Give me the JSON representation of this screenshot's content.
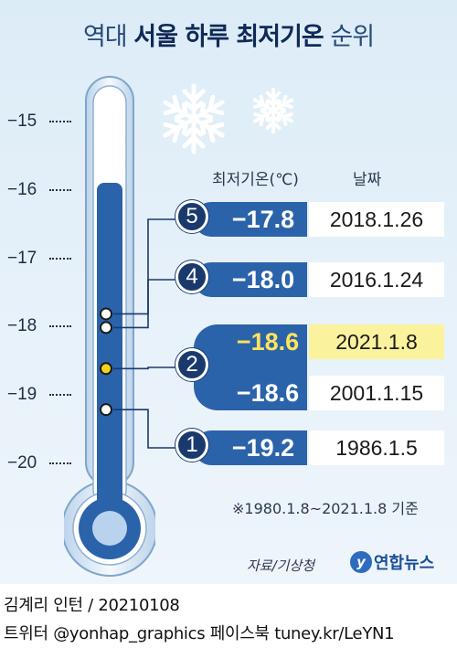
{
  "title": {
    "light": "역대",
    "bold": "서울 하루 최저기온",
    "suffix": "순위"
  },
  "headers": {
    "temp": "최저기온(℃)",
    "date": "날짜"
  },
  "note": "※1980.1.8~2021.1.8 기준",
  "source": "자료/기상청",
  "brand": {
    "mark": "y",
    "name": "연합뉴스"
  },
  "credit": {
    "line1": "김계리 인턴 / 20210108",
    "line2": "트위터 @yonhap_graphics  페이스북 tuney.kr/LeYN1"
  },
  "colors": {
    "navy": "#1a3a6e",
    "blue": "#2b63ab",
    "highlight_text": "#ffe45a",
    "highlight_bg": "#fbf29e",
    "marker_highlight": "#f3d21b"
  },
  "icons": [
    "snowflake-icon",
    "snowflake-icon",
    "thermometer-icon"
  ],
  "chart_data": {
    "type": "table",
    "axis": {
      "ticks": [
        "−15",
        "−16",
        "−17",
        "−18",
        "−19",
        "−20"
      ],
      "ylim": [
        -15,
        -20
      ]
    },
    "rows": [
      {
        "rank": "5",
        "temp": "−17.8",
        "value": -17.8,
        "date": "2018.1.26",
        "highlight": false
      },
      {
        "rank": "4",
        "temp": "−18.0",
        "value": -18.0,
        "date": "2016.1.24",
        "highlight": false
      },
      {
        "rank": "2",
        "temp": "−18.6",
        "value": -18.6,
        "date": "2021.1.8",
        "highlight": true
      },
      {
        "rank": "2",
        "temp": "−18.6",
        "value": -18.6,
        "date": "2001.1.15",
        "highlight": false
      },
      {
        "rank": "1",
        "temp": "−19.2",
        "value": -19.2,
        "date": "1986.1.5",
        "highlight": false
      }
    ]
  }
}
